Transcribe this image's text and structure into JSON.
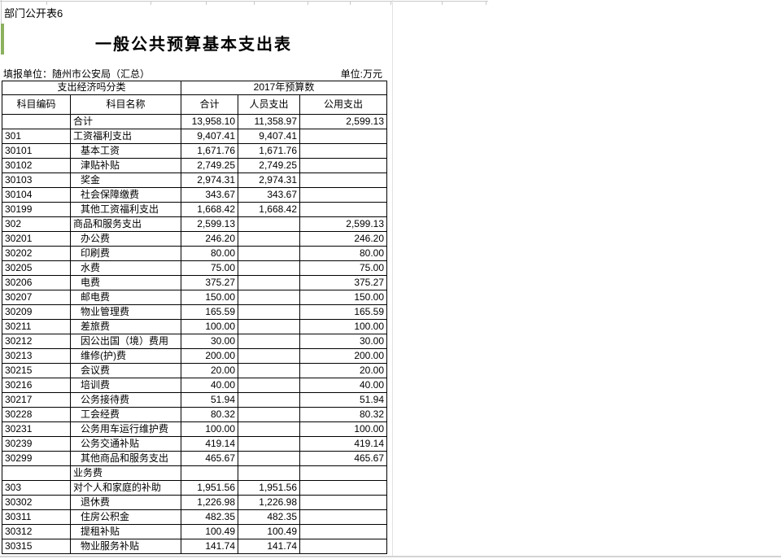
{
  "page": {
    "sheet_label": "部门公开表6",
    "title": "一般公共预算基本支出表",
    "reporting_unit": "填报单位：随州市公安局（汇总）",
    "unit_label": "单位:万元",
    "colors": {
      "accent_green": "#8bb05e",
      "table_border": "#000000",
      "gridline_gray": "#c9c9c9"
    }
  },
  "table": {
    "header": {
      "classification": "支出经济吗分类",
      "budget_year": "2017年预算数",
      "columns": [
        "科目编码",
        "科目名称",
        "合计",
        "人员支出",
        "公用支出"
      ]
    },
    "rows": [
      {
        "code": "",
        "name": "合计",
        "indent": 0,
        "total": "13,958.10",
        "personnel": "11,358.97",
        "public": "2,599.13"
      },
      {
        "code": "301",
        "name": "工资福利支出",
        "indent": 0,
        "total": "9,407.41",
        "personnel": "9,407.41",
        "public": ""
      },
      {
        "code": "30101",
        "name": "基本工资",
        "indent": 1,
        "total": "1,671.76",
        "personnel": "1,671.76",
        "public": ""
      },
      {
        "code": "30102",
        "name": "津贴补贴",
        "indent": 1,
        "total": "2,749.25",
        "personnel": "2,749.25",
        "public": ""
      },
      {
        "code": "30103",
        "name": "奖金",
        "indent": 1,
        "total": "2,974.31",
        "personnel": "2,974.31",
        "public": ""
      },
      {
        "code": "30104",
        "name": "社会保障缴费",
        "indent": 1,
        "total": "343.67",
        "personnel": "343.67",
        "public": ""
      },
      {
        "code": "30199",
        "name": "其他工资福利支出",
        "indent": 1,
        "total": "1,668.42",
        "personnel": "1,668.42",
        "public": ""
      },
      {
        "code": "302",
        "name": "商品和服务支出",
        "indent": 0,
        "total": "2,599.13",
        "personnel": "",
        "public": "2,599.13"
      },
      {
        "code": "30201",
        "name": "办公费",
        "indent": 1,
        "total": "246.20",
        "personnel": "",
        "public": "246.20"
      },
      {
        "code": "30202",
        "name": "印刷费",
        "indent": 1,
        "total": "80.00",
        "personnel": "",
        "public": "80.00"
      },
      {
        "code": "30205",
        "name": "水费",
        "indent": 1,
        "total": "75.00",
        "personnel": "",
        "public": "75.00"
      },
      {
        "code": "30206",
        "name": "电费",
        "indent": 1,
        "total": "375.27",
        "personnel": "",
        "public": "375.27"
      },
      {
        "code": "30207",
        "name": "邮电费",
        "indent": 1,
        "total": "150.00",
        "personnel": "",
        "public": "150.00"
      },
      {
        "code": "30209",
        "name": "物业管理费",
        "indent": 1,
        "total": "165.59",
        "personnel": "",
        "public": "165.59"
      },
      {
        "code": "30211",
        "name": "差旅费",
        "indent": 1,
        "total": "100.00",
        "personnel": "",
        "public": "100.00"
      },
      {
        "code": "30212",
        "name": "因公出国（境）费用",
        "indent": 1,
        "total": "30.00",
        "personnel": "",
        "public": "30.00"
      },
      {
        "code": "30213",
        "name": "维修(护)费",
        "indent": 1,
        "total": "200.00",
        "personnel": "",
        "public": "200.00"
      },
      {
        "code": "30215",
        "name": "会议费",
        "indent": 1,
        "total": "20.00",
        "personnel": "",
        "public": "20.00"
      },
      {
        "code": "30216",
        "name": "培训费",
        "indent": 1,
        "total": "40.00",
        "personnel": "",
        "public": "40.00"
      },
      {
        "code": "30217",
        "name": "公务接待费",
        "indent": 1,
        "total": "51.94",
        "personnel": "",
        "public": "51.94"
      },
      {
        "code": "30228",
        "name": "工会经费",
        "indent": 1,
        "total": "80.32",
        "personnel": "",
        "public": "80.32"
      },
      {
        "code": "30231",
        "name": "公务用车运行维护费",
        "indent": 1,
        "total": "100.00",
        "personnel": "",
        "public": "100.00"
      },
      {
        "code": "30239",
        "name": "公务交通补贴",
        "indent": 1,
        "total": "419.14",
        "personnel": "",
        "public": "419.14"
      },
      {
        "code": "30299",
        "name": "其他商品和服务支出",
        "indent": 1,
        "total": "465.67",
        "personnel": "",
        "public": "465.67"
      },
      {
        "code": "",
        "name": "业务费",
        "indent": 0,
        "total": "",
        "personnel": "",
        "public": ""
      },
      {
        "code": "303",
        "name": "对个人和家庭的补助",
        "indent": 0,
        "total": "1,951.56",
        "personnel": "1,951.56",
        "public": ""
      },
      {
        "code": "30302",
        "name": "退休费",
        "indent": 1,
        "total": "1,226.98",
        "personnel": "1,226.98",
        "public": ""
      },
      {
        "code": "30311",
        "name": "住房公积金",
        "indent": 1,
        "total": "482.35",
        "personnel": "482.35",
        "public": ""
      },
      {
        "code": "30312",
        "name": "提租补贴",
        "indent": 1,
        "total": "100.49",
        "personnel": "100.49",
        "public": ""
      },
      {
        "code": "30315",
        "name": "物业服务补贴",
        "indent": 1,
        "total": "141.74",
        "personnel": "141.74",
        "public": ""
      }
    ]
  }
}
